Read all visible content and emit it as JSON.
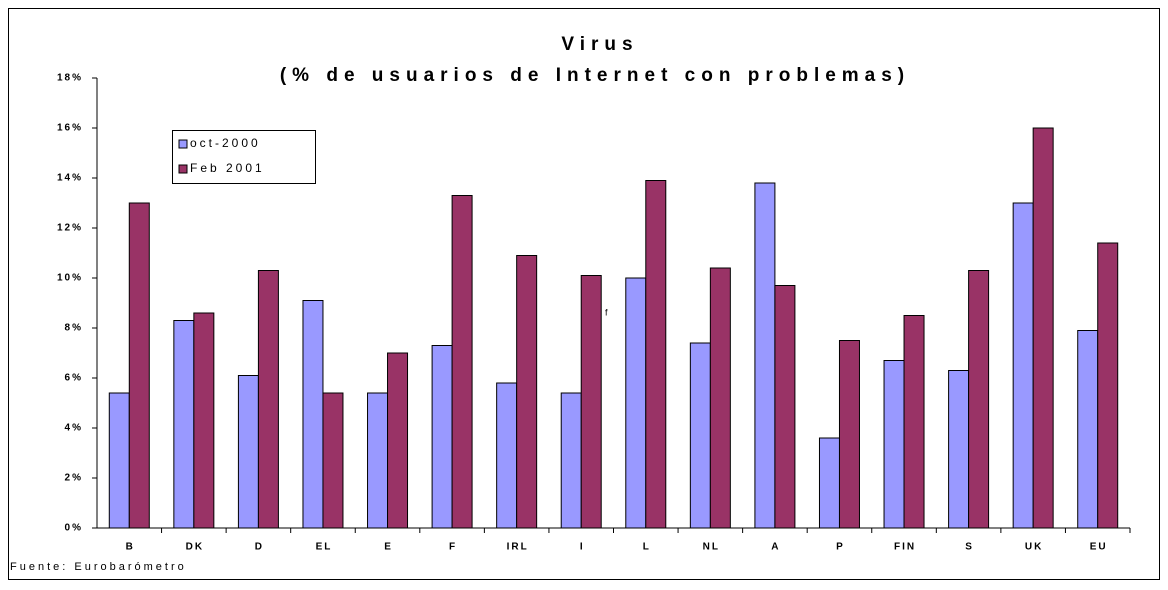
{
  "chart_data": {
    "type": "bar",
    "title": "Virus",
    "subtitle": "(% de usuarios de Internet con problemas)",
    "source": "Fuente: Eurobarómetro",
    "annotation": "f",
    "categories": [
      "B",
      "DK",
      "D",
      "EL",
      "E",
      "F",
      "IRL",
      "I",
      "L",
      "NL",
      "A",
      "P",
      "FIN",
      "S",
      "UK",
      "EU"
    ],
    "series": [
      {
        "name": "oct-2000",
        "color": "#9999ff",
        "values": [
          5.4,
          8.3,
          6.1,
          9.1,
          5.4,
          7.3,
          5.8,
          5.4,
          10.0,
          7.4,
          13.8,
          3.6,
          6.7,
          6.3,
          13.0,
          7.9
        ]
      },
      {
        "name": "Feb 2001",
        "color": "#993366",
        "values": [
          13.0,
          8.6,
          10.3,
          5.4,
          7.0,
          13.3,
          10.9,
          10.1,
          13.9,
          10.4,
          9.7,
          7.5,
          8.5,
          10.3,
          16.0,
          11.4
        ]
      }
    ],
    "ylim": [
      0,
      18
    ],
    "yticks": [
      {
        "value": 0,
        "label": "0%"
      },
      {
        "value": 2,
        "label": "2%"
      },
      {
        "value": 4,
        "label": "4%"
      },
      {
        "value": 6,
        "label": "6%"
      },
      {
        "value": 8,
        "label": "8%"
      },
      {
        "value": 10,
        "label": "10%"
      },
      {
        "value": 12,
        "label": "12%"
      },
      {
        "value": 14,
        "label": "14%"
      },
      {
        "value": 16,
        "label": "16%"
      },
      {
        "value": 18,
        "label": "18%"
      }
    ],
    "legend": "top-left"
  }
}
